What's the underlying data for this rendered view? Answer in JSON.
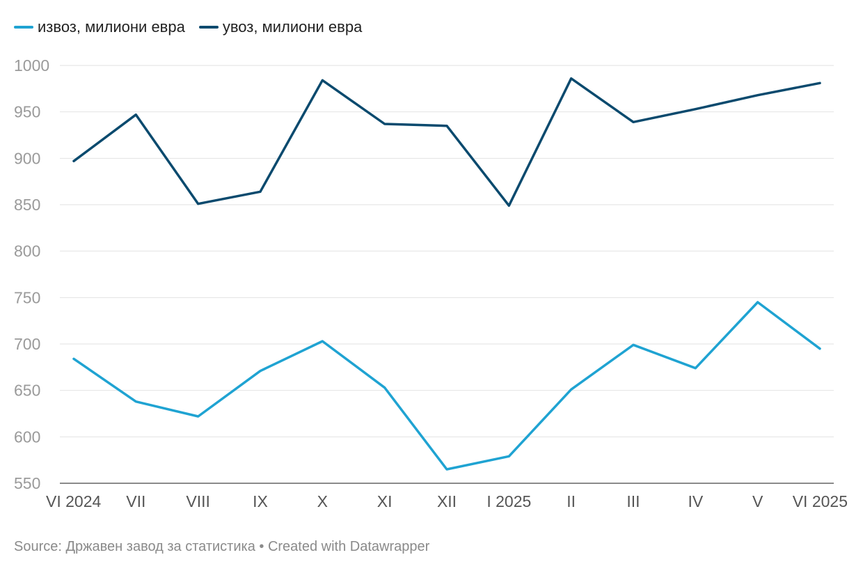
{
  "chart_data": {
    "type": "line",
    "categories": [
      "VI 2024",
      "VII",
      "VIII",
      "IX",
      "X",
      "XI",
      "XII",
      "I 2025",
      "II",
      "III",
      "IV",
      "V",
      "VI 2025"
    ],
    "series": [
      {
        "name": "извоз, милиони евра",
        "color": "#1fa3d2",
        "values": [
          684,
          638,
          622,
          671,
          703,
          653,
          565,
          579,
          651,
          699,
          674,
          745,
          695
        ]
      },
      {
        "name": "увоз, милиони евра",
        "color": "#0b4a6e",
        "values": [
          897,
          947,
          851,
          864,
          984,
          937,
          935,
          849,
          986,
          939,
          953,
          968,
          981
        ]
      }
    ],
    "yticks": [
      550,
      600,
      650,
      700,
      750,
      800,
      850,
      900,
      950,
      1000
    ],
    "ylim": [
      550,
      1000
    ],
    "grid": true,
    "legend": "top-left"
  },
  "footer": {
    "text": "Source: Државен завод за статистика • Created with Datawrapper"
  }
}
